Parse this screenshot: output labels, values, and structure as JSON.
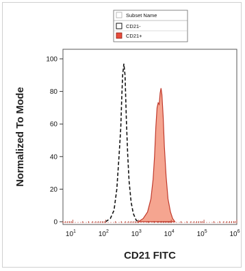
{
  "chart_data": {
    "type": "area",
    "xlabel": "CD21 FITC",
    "ylabel": "Normalized To Mode",
    "xscale": "log",
    "xlim": [
      5,
      1000000
    ],
    "ylim": [
      0,
      100
    ],
    "y_ticks": [
      "0",
      "20",
      "40",
      "60",
      "80",
      "100"
    ],
    "x_ticks": [
      {
        "base": "10",
        "exp": "1",
        "value": 10
      },
      {
        "base": "10",
        "exp": "2",
        "value": 100
      },
      {
        "base": "10",
        "exp": "3",
        "value": 1000
      },
      {
        "base": "10",
        "exp": "4",
        "value": 10000
      },
      {
        "base": "10",
        "exp": "5",
        "value": 100000
      },
      {
        "base": "10",
        "exp": "6",
        "value": 1000000
      }
    ],
    "legend": {
      "title": "Subset Name",
      "placement": "top-center"
    },
    "series": [
      {
        "name": "CD21-",
        "style": "dashed-outline",
        "color": "#111111",
        "fill": "none",
        "points": [
          [
            100,
            0
          ],
          [
            140,
            2
          ],
          [
            180,
            7
          ],
          [
            220,
            20
          ],
          [
            260,
            42
          ],
          [
            290,
            58
          ],
          [
            310,
            76
          ],
          [
            330,
            90
          ],
          [
            360,
            97
          ],
          [
            390,
            90
          ],
          [
            430,
            62
          ],
          [
            470,
            42
          ],
          [
            520,
            25
          ],
          [
            600,
            12
          ],
          [
            700,
            5
          ],
          [
            850,
            1
          ],
          [
            1000,
            0
          ]
        ]
      },
      {
        "name": "CD21+",
        "style": "filled",
        "color": "#c0392b",
        "fill": "#f4a08a",
        "points": [
          [
            1000,
            0
          ],
          [
            1400,
            2
          ],
          [
            1900,
            6
          ],
          [
            2400,
            14
          ],
          [
            2800,
            26
          ],
          [
            3100,
            40
          ],
          [
            3400,
            58
          ],
          [
            3700,
            70
          ],
          [
            4000,
            73
          ],
          [
            4300,
            72
          ],
          [
            4600,
            79
          ],
          [
            4900,
            82
          ],
          [
            5200,
            78
          ],
          [
            5700,
            64
          ],
          [
            6200,
            46
          ],
          [
            7000,
            28
          ],
          [
            8000,
            14
          ],
          [
            9500,
            6
          ],
          [
            11000,
            2
          ],
          [
            13000,
            0
          ]
        ]
      }
    ]
  }
}
